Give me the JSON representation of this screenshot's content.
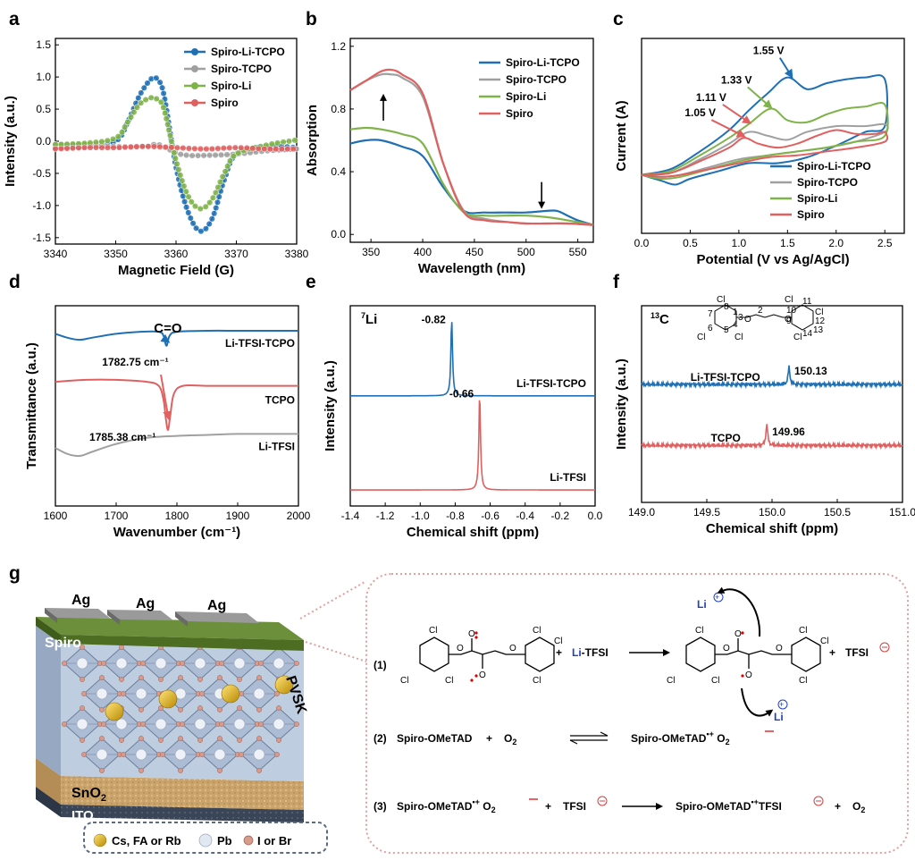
{
  "figure": {
    "panels": {
      "a": "a",
      "b": "b",
      "c": "c",
      "d": "d",
      "e": "e",
      "f": "f",
      "g": "g"
    }
  },
  "chart_data": [
    {
      "id": "a",
      "type": "line",
      "xlabel": "Magnetic Field (G)",
      "ylabel": "Intensity (a.u.)",
      "xlim": [
        3340,
        3380
      ],
      "ylim": [
        -1.6,
        1.6
      ],
      "xticks": [
        "3340",
        "3350",
        "3360",
        "3370",
        "3380"
      ],
      "yticks": [
        "-1.5",
        "-1.0",
        "-0.5",
        "0.0",
        "0.5",
        "1.0",
        "1.5"
      ],
      "legend_position": "top-right",
      "series": [
        {
          "name": "Spiro-Li-TCPO",
          "color": "#1f6fb5",
          "marker": "circle",
          "x": [
            3340,
            3345,
            3350,
            3352,
            3354,
            3356,
            3357,
            3358,
            3360,
            3362,
            3364,
            3366,
            3368,
            3370,
            3375,
            3380
          ],
          "y": [
            -0.1,
            -0.08,
            0.0,
            0.3,
            0.72,
            0.98,
            0.95,
            0.72,
            -0.4,
            -1.1,
            -1.4,
            -1.2,
            -0.6,
            -0.2,
            -0.08,
            -0.1
          ]
        },
        {
          "name": "Spiro-TCPO",
          "color": "#a0a0a0",
          "marker": "circle",
          "x": [
            3340,
            3345,
            3350,
            3355,
            3357,
            3360,
            3362,
            3365,
            3370,
            3375,
            3380
          ],
          "y": [
            -0.05,
            -0.05,
            -0.08,
            -0.08,
            -0.05,
            -0.18,
            -0.22,
            -0.22,
            -0.2,
            -0.15,
            -0.12
          ]
        },
        {
          "name": "Spiro-Li",
          "color": "#7fb34a",
          "marker": "circle",
          "x": [
            3340,
            3345,
            3350,
            3352,
            3354,
            3356,
            3357,
            3358,
            3360,
            3362,
            3364,
            3366,
            3368,
            3370,
            3375,
            3380
          ],
          "y": [
            -0.05,
            -0.03,
            0.05,
            0.3,
            0.58,
            0.68,
            0.64,
            0.5,
            -0.3,
            -0.85,
            -1.05,
            -0.9,
            -0.5,
            -0.2,
            -0.06,
            0.02
          ]
        },
        {
          "name": "Spiro",
          "color": "#e06060",
          "marker": "circle",
          "x": [
            3340,
            3345,
            3350,
            3355,
            3360,
            3365,
            3370,
            3375,
            3380
          ],
          "y": [
            -0.12,
            -0.1,
            -0.1,
            -0.08,
            -0.1,
            -0.12,
            -0.1,
            -0.12,
            -0.12
          ]
        }
      ]
    },
    {
      "id": "b",
      "type": "line",
      "xlabel": "Wavelength (nm)",
      "ylabel": "Absorption",
      "xlim": [
        330,
        565
      ],
      "ylim": [
        -0.05,
        1.25
      ],
      "xticks": [
        "350",
        "400",
        "450",
        "500",
        "550"
      ],
      "yticks": [
        "0.0",
        "0.4",
        "0.8",
        "1.2"
      ],
      "legend_position": "top-right",
      "series": [
        {
          "name": "Spiro-Li-TCPO",
          "color": "#1f6fb5",
          "x": [
            330,
            345,
            360,
            380,
            400,
            420,
            440,
            460,
            480,
            500,
            520,
            530,
            540,
            550,
            565
          ],
          "y": [
            0.58,
            0.6,
            0.6,
            0.56,
            0.5,
            0.3,
            0.15,
            0.14,
            0.14,
            0.14,
            0.15,
            0.15,
            0.12,
            0.09,
            0.06
          ]
        },
        {
          "name": "Spiro-TCPO",
          "color": "#a0a0a0",
          "x": [
            330,
            345,
            360,
            370,
            380,
            400,
            420,
            440,
            460,
            480,
            500,
            520,
            540,
            565
          ],
          "y": [
            0.92,
            0.98,
            1.02,
            1.02,
            1.0,
            0.88,
            0.45,
            0.15,
            0.1,
            0.08,
            0.07,
            0.07,
            0.07,
            0.06
          ]
        },
        {
          "name": "Spiro-Li",
          "color": "#7fb34a",
          "x": [
            330,
            345,
            360,
            380,
            400,
            420,
            440,
            460,
            480,
            500,
            520,
            540,
            565
          ],
          "y": [
            0.67,
            0.68,
            0.67,
            0.64,
            0.58,
            0.32,
            0.14,
            0.12,
            0.12,
            0.12,
            0.11,
            0.09,
            0.06
          ]
        },
        {
          "name": "Spiro",
          "color": "#e06060",
          "x": [
            330,
            345,
            360,
            370,
            380,
            400,
            420,
            440,
            460,
            480,
            500,
            520,
            540,
            565
          ],
          "y": [
            0.92,
            0.98,
            1.04,
            1.05,
            1.02,
            0.9,
            0.45,
            0.14,
            0.09,
            0.08,
            0.07,
            0.07,
            0.07,
            0.06
          ]
        }
      ],
      "annotations": [
        {
          "type": "arrow-up",
          "x": 362,
          "y": 0.84
        },
        {
          "type": "arrow-down",
          "x": 515,
          "y": 0.22
        }
      ]
    },
    {
      "id": "c",
      "type": "line",
      "xlabel": "Potential (V vs Ag/AgCl)",
      "ylabel": "Current (A)",
      "xlim": [
        0.0,
        2.7
      ],
      "ylim": [
        0,
        1
      ],
      "xticks": [
        "0.0",
        "0.5",
        "1.0",
        "1.5",
        "2.0",
        "2.5"
      ],
      "legend_position": "bottom-right",
      "series": [
        {
          "name": "Spiro-Li-TCPO",
          "color": "#1f6fb5",
          "x": [
            0.0,
            0.3,
            0.6,
            0.9,
            1.1,
            1.3,
            1.5,
            1.7,
            1.9,
            2.1,
            2.3,
            2.5,
            2.5,
            2.3,
            2.0,
            1.7,
            1.4,
            1.1,
            0.8,
            0.5,
            0.35,
            0.2,
            0.0
          ],
          "y": [
            0.3,
            0.33,
            0.42,
            0.53,
            0.63,
            0.72,
            0.8,
            0.74,
            0.77,
            0.79,
            0.8,
            0.79,
            0.55,
            0.52,
            0.45,
            0.39,
            0.36,
            0.36,
            0.32,
            0.28,
            0.25,
            0.27,
            0.3
          ]
        },
        {
          "name": "Spiro-TCPO",
          "color": "#a0a0a0",
          "x": [
            0.0,
            0.3,
            0.6,
            0.9,
            1.1,
            1.3,
            1.5,
            1.7,
            2.0,
            2.3,
            2.5,
            2.5,
            2.2,
            1.9,
            1.6,
            1.3,
            1.0,
            0.7,
            0.4,
            0.2,
            0.0
          ],
          "y": [
            0.3,
            0.31,
            0.38,
            0.46,
            0.52,
            0.5,
            0.48,
            0.52,
            0.55,
            0.55,
            0.56,
            0.52,
            0.47,
            0.44,
            0.42,
            0.4,
            0.38,
            0.34,
            0.3,
            0.29,
            0.3
          ]
        },
        {
          "name": "Spiro-Li",
          "color": "#7fb34a",
          "x": [
            0.0,
            0.3,
            0.6,
            0.9,
            1.1,
            1.33,
            1.5,
            1.7,
            1.9,
            2.1,
            2.3,
            2.5,
            2.5,
            2.2,
            1.9,
            1.6,
            1.3,
            1.0,
            0.7,
            0.4,
            0.2,
            0.0
          ],
          "y": [
            0.3,
            0.32,
            0.4,
            0.49,
            0.56,
            0.64,
            0.58,
            0.57,
            0.61,
            0.64,
            0.65,
            0.66,
            0.5,
            0.47,
            0.44,
            0.42,
            0.4,
            0.37,
            0.33,
            0.29,
            0.28,
            0.3
          ]
        },
        {
          "name": "Spiro",
          "color": "#e06060",
          "x": [
            0.0,
            0.3,
            0.6,
            0.9,
            1.05,
            1.2,
            1.4,
            1.6,
            1.8,
            2.0,
            2.2,
            2.4,
            2.5,
            2.5,
            2.2,
            1.9,
            1.6,
            1.3,
            1.0,
            0.7,
            0.4,
            0.2,
            0.0
          ],
          "y": [
            0.3,
            0.31,
            0.37,
            0.44,
            0.49,
            0.46,
            0.44,
            0.46,
            0.5,
            0.53,
            0.51,
            0.51,
            0.52,
            0.47,
            0.44,
            0.42,
            0.4,
            0.39,
            0.36,
            0.33,
            0.3,
            0.29,
            0.3
          ]
        }
      ],
      "annotations": [
        {
          "text": "1.55 V",
          "x": 1.55,
          "y": 0.8
        },
        {
          "text": "1.33 V",
          "x": 1.33,
          "y": 0.64
        },
        {
          "text": "1.11 V",
          "x": 1.11,
          "y": 0.56
        },
        {
          "text": "1.05 V",
          "x": 1.05,
          "y": 0.49
        }
      ]
    },
    {
      "id": "d",
      "type": "line",
      "xlabel": "Wavenumber (cm⁻¹)",
      "ylabel": "Transmittance (a.u.)",
      "xlim": [
        1600,
        2000
      ],
      "ylim": [
        0,
        1
      ],
      "xticks": [
        "1600",
        "1700",
        "1800",
        "1900",
        "2000"
      ],
      "series": [
        {
          "name": "Li-TFSI-TCPO",
          "color": "#1f6fb5",
          "x": [
            1600,
            1620,
            1640,
            1660,
            1700,
            1740,
            1770,
            1778,
            1782.75,
            1788,
            1800,
            1850,
            1900,
            1950,
            2000
          ],
          "y": [
            0.86,
            0.84,
            0.83,
            0.84,
            0.86,
            0.87,
            0.87,
            0.85,
            0.8,
            0.85,
            0.87,
            0.875,
            0.875,
            0.875,
            0.875
          ]
        },
        {
          "name": "TCPO",
          "color": "#e06060",
          "x": [
            1600,
            1650,
            1700,
            1750,
            1770,
            1778,
            1782,
            1785.38,
            1789,
            1795,
            1810,
            1850,
            1900,
            1950,
            2000
          ],
          "y": [
            0.62,
            0.63,
            0.63,
            0.62,
            0.6,
            0.53,
            0.43,
            0.38,
            0.45,
            0.56,
            0.6,
            0.6,
            0.6,
            0.6,
            0.6
          ]
        },
        {
          "name": "Li-TFSI",
          "color": "#a0a0a0",
          "x": [
            1600,
            1620,
            1640,
            1660,
            1700,
            1750,
            1800,
            1850,
            1900,
            1950,
            2000
          ],
          "y": [
            0.29,
            0.26,
            0.25,
            0.27,
            0.31,
            0.34,
            0.35,
            0.355,
            0.36,
            0.36,
            0.36
          ]
        }
      ],
      "annotations": [
        {
          "text": "C=O"
        },
        {
          "text": "1782.75 cm⁻¹"
        },
        {
          "text": "1785.38 cm⁻¹"
        }
      ]
    },
    {
      "id": "e",
      "type": "line",
      "xlabel": "Chemical shift (ppm)",
      "ylabel": "Intensity (a.u.)",
      "xlim": [
        -1.4,
        0.0
      ],
      "ylim": [
        0,
        1
      ],
      "xticks": [
        "-1.4",
        "-1.2",
        "-1.0",
        "-0.8",
        "-0.6",
        "-0.4",
        "-0.2",
        "0.0"
      ],
      "nucleus": "7Li",
      "series": [
        {
          "name": "Li-TFSI-TCPO",
          "color": "#1f6fb5",
          "peak": -0.82,
          "baseline": 0.55,
          "height": 0.38
        },
        {
          "name": "Li-TFSI",
          "color": "#e06060",
          "peak": -0.66,
          "baseline": 0.08,
          "height": 0.48
        }
      ],
      "annotations": [
        {
          "text": "-0.82"
        },
        {
          "text": "-0.66"
        }
      ]
    },
    {
      "id": "f",
      "type": "line",
      "xlabel": "Chemical shift (ppm)",
      "ylabel": "Intensity (a.u.)",
      "xlim": [
        149.0,
        151.0
      ],
      "ylim": [
        0,
        1
      ],
      "xticks": [
        "149.0",
        "149.5",
        "150.0",
        "150.5",
        "151.0"
      ],
      "nucleus": "13C",
      "series": [
        {
          "name": "Li-TFSI-TCPO",
          "color": "#1f6fb5",
          "peak": 150.13,
          "baseline": 0.6,
          "height": 0.09
        },
        {
          "name": "TCPO",
          "color": "#e06060",
          "peak": 149.96,
          "baseline": 0.29,
          "height": 0.11
        }
      ],
      "annotations": [
        {
          "text": "150.13"
        },
        {
          "text": "149.96"
        }
      ]
    }
  ],
  "panel_f_structure": {
    "numbers": [
      "1",
      "2",
      "3",
      "4",
      "5",
      "6",
      "7",
      "8",
      "9",
      "10",
      "11",
      "12",
      "13",
      "14"
    ],
    "substituent": "Cl"
  },
  "panel_g": {
    "device_layers": {
      "top": "Ag",
      "spiro": "Spiro",
      "pvsk": "PVSK",
      "sno2": "SnO",
      "sno2_sub": "2",
      "ito": "ITO"
    },
    "legend": {
      "cation": "Cs, FA or Rb",
      "pb": "Pb",
      "halide": "I or Br"
    },
    "reactions": {
      "r1_label": "(1)",
      "r2_label": "(2)",
      "r3_label": "(3)",
      "plus": "+",
      "li": "Li",
      "tfsi_suffix": "-TFSI",
      "tfsi": "TFSI",
      "spiro_ometad": "Spiro-OMeTAD",
      "o2": "O",
      "o2_sub": "2",
      "radical_cation": "•+",
      "cl": "Cl",
      "o": "O"
    }
  },
  "colors": {
    "blue": "#1f6fb5",
    "gray": "#a0a0a0",
    "green": "#7fb34a",
    "red": "#e06060",
    "dotted_box": "#e0a0a0"
  }
}
